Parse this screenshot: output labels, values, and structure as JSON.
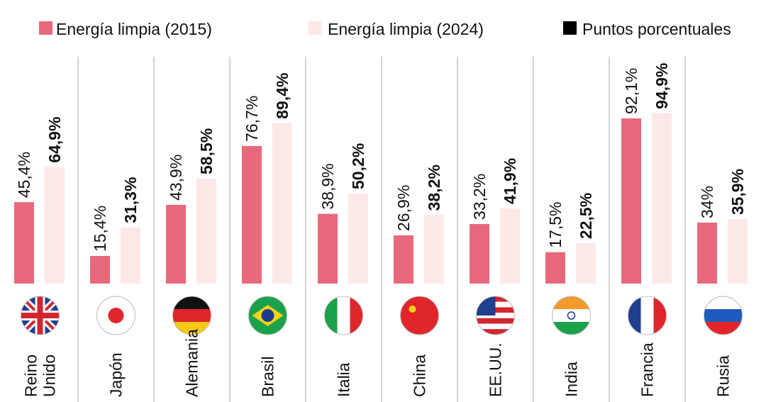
{
  "chart_data": {
    "type": "bar",
    "categories": [
      "Reino Unido",
      "Japón",
      "Alemania",
      "Brasil",
      "Italia",
      "China",
      "EE.UU.",
      "India",
      "Francia",
      "Rusia"
    ],
    "series": [
      {
        "name": "Energía limpia (2015)",
        "color": "#e8697c",
        "values": [
          45.4,
          15.4,
          43.9,
          76.7,
          38.9,
          26.9,
          33.2,
          17.5,
          92.1,
          34
        ],
        "value_labels": [
          "45,4%",
          "15,4%",
          "43,9%",
          "76,7%",
          "38,9%",
          "26,9%",
          "33,2%",
          "17,5%",
          "92,1%",
          "34%"
        ]
      },
      {
        "name": "Energía limpia (2024)",
        "color": "#fde8e8",
        "values": [
          64.9,
          31.3,
          58.5,
          89.4,
          50.2,
          38.2,
          41.9,
          22.5,
          94.9,
          35.9
        ],
        "value_labels": [
          "64,9%",
          "31,3%",
          "58,5%",
          "89,4%",
          "50,2%",
          "38,2%",
          "41,9%",
          "22,5%",
          "94,9%",
          "35,9%"
        ]
      }
    ],
    "legend_note": {
      "label": "Puntos porcentuales",
      "color": "#000000"
    },
    "ylim": [
      0,
      100
    ]
  }
}
